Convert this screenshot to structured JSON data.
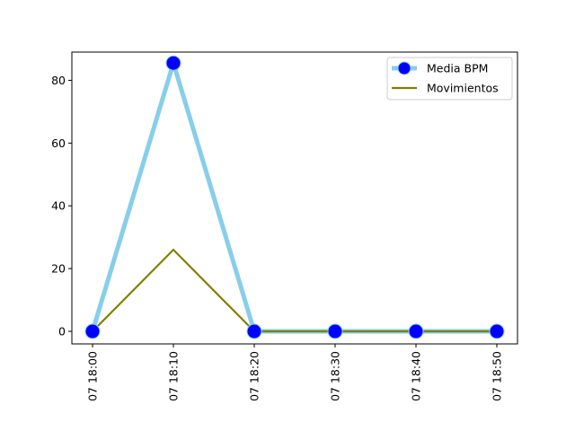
{
  "chart_data": {
    "type": "line",
    "x": [
      "07 18:00",
      "07 18:10",
      "07 18:20",
      "07 18:30",
      "07 18:40",
      "07 18:50"
    ],
    "xlabel": "",
    "ylabel": "",
    "title": "",
    "ylim": [
      -4,
      89
    ],
    "yticks": [
      0,
      20,
      40,
      60,
      80
    ],
    "grid": false,
    "legend_position": "top-right",
    "series": [
      {
        "name": "Media BPM",
        "values": [
          0,
          85.5,
          0,
          0,
          0,
          0
        ],
        "line_color": "#87ceeb",
        "marker_color": "#0000ff",
        "marker": "circle"
      },
      {
        "name": "Movimientos",
        "values": [
          0,
          26,
          0,
          0,
          0,
          0
        ],
        "line_color": "#808000",
        "marker": "none"
      }
    ]
  }
}
